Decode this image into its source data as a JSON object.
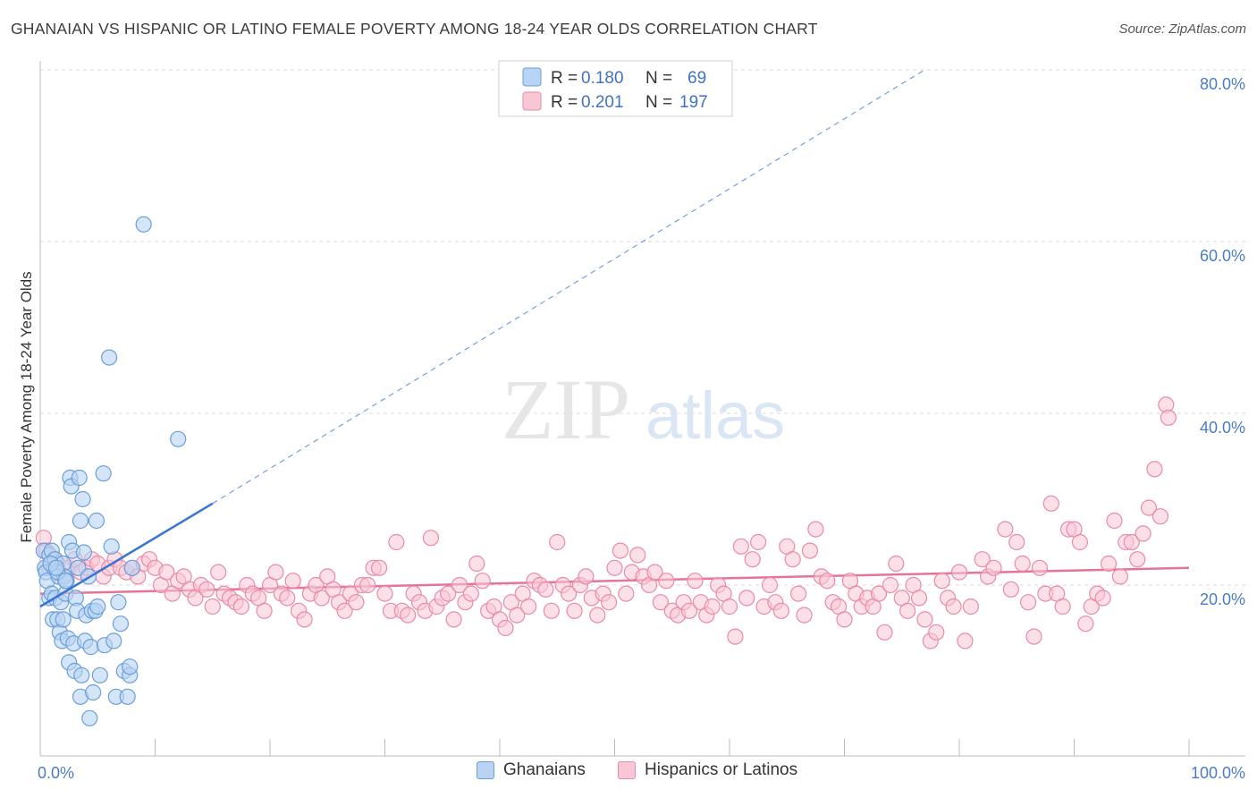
{
  "header": {
    "title": "GHANAIAN VS HISPANIC OR LATINO FEMALE POVERTY AMONG 18-24 YEAR OLDS CORRELATION CHART",
    "source": "Source: ZipAtlas.com"
  },
  "watermark": {
    "zip": "ZIP",
    "atlas": "atlas"
  },
  "colors": {
    "blue_fill": "#b8d3f4",
    "blue_stroke": "#6b9fd8",
    "blue_line": "#3a75d0",
    "pink_fill": "#f9c6d6",
    "pink_stroke": "#e88aa8",
    "pink_line": "#e5739a",
    "tick_text": "#4a7cc9",
    "grid": "#d9d9d9"
  },
  "legend_top": [
    {
      "r_label": "R =",
      "r_value": "0.180",
      "n_label": "N =",
      "n_value": "69"
    },
    {
      "r_label": "R =",
      "r_value": "0.201",
      "n_label": "N =",
      "n_value": "197"
    }
  ],
  "legend_bottom": [
    "Ghanaians",
    "Hispanics or Latinos"
  ],
  "chart_data": {
    "type": "scatter",
    "title": "GHANAIAN VS HISPANIC OR LATINO FEMALE POVERTY AMONG 18-24 YEAR OLDS CORRELATION CHART",
    "ylabel": "Female Poverty Among 18-24 Year Olds",
    "xlabel": "",
    "xlim": [
      0,
      100
    ],
    "ylim": [
      0,
      85
    ],
    "x_tick_labels": [
      "0.0%",
      "100.0%"
    ],
    "y_tick_labels": [
      "20.0%",
      "40.0%",
      "60.0%",
      "80.0%"
    ],
    "y_ticks": [
      20,
      40,
      60,
      80
    ],
    "grid": true,
    "legend_position": "top-center",
    "series": [
      {
        "name": "Ghanaians",
        "R": 0.18,
        "N": 69,
        "trend": {
          "x": [
            0,
            15
          ],
          "y": [
            17.5,
            29.5
          ],
          "extended_to": [
            77,
            80
          ]
        },
        "points": [
          [
            0.3,
            24
          ],
          [
            0.4,
            22
          ],
          [
            0.5,
            21.5
          ],
          [
            0.6,
            20.5
          ],
          [
            0.8,
            23.5
          ],
          [
            0.8,
            18.5
          ],
          [
            1.0,
            19
          ],
          [
            1.0,
            24
          ],
          [
            1.1,
            16
          ],
          [
            1.2,
            22
          ],
          [
            1.3,
            23
          ],
          [
            1.3,
            18.5
          ],
          [
            1.5,
            16
          ],
          [
            1.6,
            21
          ],
          [
            1.7,
            14.5
          ],
          [
            1.8,
            18
          ],
          [
            1.9,
            13.5
          ],
          [
            2.0,
            22.5
          ],
          [
            2.0,
            16
          ],
          [
            2.1,
            21
          ],
          [
            2.2,
            19
          ],
          [
            2.3,
            20.5
          ],
          [
            2.4,
            13.8
          ],
          [
            2.5,
            11
          ],
          [
            2.5,
            25
          ],
          [
            2.6,
            32.5
          ],
          [
            2.7,
            31.5
          ],
          [
            2.8,
            24
          ],
          [
            2.9,
            13.2
          ],
          [
            3.0,
            10
          ],
          [
            3.1,
            18.5
          ],
          [
            3.2,
            17
          ],
          [
            3.3,
            22
          ],
          [
            3.4,
            32.5
          ],
          [
            3.5,
            27.5
          ],
          [
            3.5,
            7
          ],
          [
            3.6,
            9.5
          ],
          [
            3.7,
            30
          ],
          [
            3.8,
            23.8
          ],
          [
            3.9,
            13.5
          ],
          [
            4.0,
            16.5
          ],
          [
            4.2,
            21
          ],
          [
            4.3,
            4.5
          ],
          [
            4.4,
            12.8
          ],
          [
            4.5,
            17
          ],
          [
            4.6,
            7.5
          ],
          [
            4.8,
            17
          ],
          [
            4.9,
            27.5
          ],
          [
            5.0,
            17.5
          ],
          [
            5.2,
            9.5
          ],
          [
            5.5,
            33
          ],
          [
            5.6,
            13
          ],
          [
            6.0,
            46.5
          ],
          [
            6.2,
            24.5
          ],
          [
            6.4,
            13.5
          ],
          [
            6.6,
            7
          ],
          [
            6.8,
            18
          ],
          [
            7.0,
            15.5
          ],
          [
            7.3,
            10
          ],
          [
            7.6,
            7
          ],
          [
            7.8,
            9.5
          ],
          [
            7.8,
            10.5
          ],
          [
            8.0,
            22
          ],
          [
            9.0,
            62
          ],
          [
            12.0,
            37
          ],
          [
            1.5,
            21.5
          ],
          [
            2.2,
            20.5
          ],
          [
            0.9,
            22.5
          ],
          [
            1.4,
            22
          ]
        ]
      },
      {
        "name": "Hispanics or Latinos",
        "R": 0.201,
        "N": 197,
        "trend": {
          "x": [
            0,
            100
          ],
          "y": [
            19,
            22
          ]
        },
        "points": [
          [
            0.3,
            25.5
          ],
          [
            0.5,
            24
          ],
          [
            0.8,
            22
          ],
          [
            1.2,
            23
          ],
          [
            1.5,
            22.5
          ],
          [
            2,
            21
          ],
          [
            2.5,
            22
          ],
          [
            3,
            23
          ],
          [
            3.5,
            21.5
          ],
          [
            4,
            22
          ],
          [
            4.5,
            23
          ],
          [
            5,
            22.5
          ],
          [
            5.5,
            21
          ],
          [
            6,
            22
          ],
          [
            6.5,
            23
          ],
          [
            7,
            22
          ],
          [
            7.5,
            21.5
          ],
          [
            8,
            22
          ],
          [
            8.5,
            21
          ],
          [
            9,
            22.5
          ],
          [
            9.5,
            23
          ],
          [
            10,
            22
          ],
          [
            10.5,
            20
          ],
          [
            11,
            21.5
          ],
          [
            11.5,
            19
          ],
          [
            12,
            20.5
          ],
          [
            12.5,
            21
          ],
          [
            13,
            19.5
          ],
          [
            13.5,
            18.5
          ],
          [
            14,
            20
          ],
          [
            14.5,
            19.5
          ],
          [
            15,
            17.5
          ],
          [
            15.5,
            21.5
          ],
          [
            16,
            19
          ],
          [
            16.5,
            18.5
          ],
          [
            17,
            18
          ],
          [
            17.5,
            17.5
          ],
          [
            18,
            20
          ],
          [
            18.5,
            19
          ],
          [
            19,
            18.5
          ],
          [
            19.5,
            17
          ],
          [
            20,
            20
          ],
          [
            20.5,
            21.5
          ],
          [
            21,
            19
          ],
          [
            21.5,
            18.5
          ],
          [
            22,
            20.5
          ],
          [
            22.5,
            17
          ],
          [
            23,
            16
          ],
          [
            23.5,
            19
          ],
          [
            24,
            20
          ],
          [
            24.5,
            18.5
          ],
          [
            25,
            21
          ],
          [
            25.5,
            19.5
          ],
          [
            26,
            18
          ],
          [
            26.5,
            17
          ],
          [
            27,
            19
          ],
          [
            27.5,
            18
          ],
          [
            28,
            20
          ],
          [
            28.5,
            20
          ],
          [
            29,
            22
          ],
          [
            29.5,
            22
          ],
          [
            30,
            19
          ],
          [
            30.5,
            17
          ],
          [
            31,
            25
          ],
          [
            31.5,
            17
          ],
          [
            32,
            16.5
          ],
          [
            32.5,
            19
          ],
          [
            33,
            18
          ],
          [
            33.5,
            17
          ],
          [
            34,
            25.5
          ],
          [
            34.5,
            17.5
          ],
          [
            35,
            18.5
          ],
          [
            35.5,
            19
          ],
          [
            36,
            16
          ],
          [
            36.5,
            20
          ],
          [
            37,
            18
          ],
          [
            37.5,
            19
          ],
          [
            38,
            22.5
          ],
          [
            38.5,
            20.5
          ],
          [
            39,
            17
          ],
          [
            39.5,
            17.5
          ],
          [
            40,
            16
          ],
          [
            40.5,
            15
          ],
          [
            41,
            18
          ],
          [
            41.5,
            16.5
          ],
          [
            42,
            19
          ],
          [
            42.5,
            17.5
          ],
          [
            43,
            20.5
          ],
          [
            43.5,
            20
          ],
          [
            44,
            19.5
          ],
          [
            44.5,
            17
          ],
          [
            45,
            25
          ],
          [
            45.5,
            20
          ],
          [
            46,
            19
          ],
          [
            46.5,
            17
          ],
          [
            47,
            20
          ],
          [
            47.5,
            21
          ],
          [
            48,
            18.5
          ],
          [
            48.5,
            16.5
          ],
          [
            49,
            19
          ],
          [
            49.5,
            18
          ],
          [
            50,
            22
          ],
          [
            50.5,
            24
          ],
          [
            51,
            19
          ],
          [
            51.5,
            21.5
          ],
          [
            52,
            23.5
          ],
          [
            52.5,
            21
          ],
          [
            53,
            20
          ],
          [
            53.5,
            21.5
          ],
          [
            54,
            18
          ],
          [
            54.5,
            20.5
          ],
          [
            55,
            17
          ],
          [
            55.5,
            16.5
          ],
          [
            56,
            18
          ],
          [
            56.5,
            17
          ],
          [
            57,
            20.5
          ],
          [
            57.5,
            18
          ],
          [
            58,
            16.5
          ],
          [
            58.5,
            17.5
          ],
          [
            59,
            20
          ],
          [
            59.5,
            19
          ],
          [
            60,
            17.5
          ],
          [
            60.5,
            14
          ],
          [
            61,
            24.5
          ],
          [
            61.5,
            18.5
          ],
          [
            62,
            23
          ],
          [
            62.5,
            25
          ],
          [
            63,
            17.5
          ],
          [
            63.5,
            20
          ],
          [
            64,
            18
          ],
          [
            64.5,
            17
          ],
          [
            65,
            24.5
          ],
          [
            65.5,
            23
          ],
          [
            66,
            19
          ],
          [
            66.5,
            16.5
          ],
          [
            67,
            24
          ],
          [
            67.5,
            26.5
          ],
          [
            68,
            21
          ],
          [
            68.5,
            20.5
          ],
          [
            69,
            18
          ],
          [
            69.5,
            17.5
          ],
          [
            70,
            16
          ],
          [
            70.5,
            20.5
          ],
          [
            71,
            19
          ],
          [
            71.5,
            17.5
          ],
          [
            72,
            18.5
          ],
          [
            72.5,
            17.5
          ],
          [
            73,
            19
          ],
          [
            73.5,
            14.5
          ],
          [
            74,
            20
          ],
          [
            74.5,
            22.5
          ],
          [
            75,
            18.5
          ],
          [
            75.5,
            17
          ],
          [
            76,
            20
          ],
          [
            76.5,
            18.5
          ],
          [
            77,
            16
          ],
          [
            77.5,
            13.5
          ],
          [
            78,
            14.5
          ],
          [
            78.5,
            20.5
          ],
          [
            79,
            18.5
          ],
          [
            79.5,
            17.5
          ],
          [
            80,
            21.5
          ],
          [
            80.5,
            13.5
          ],
          [
            81,
            17.5
          ],
          [
            82,
            23
          ],
          [
            82.5,
            21
          ],
          [
            83,
            22
          ],
          [
            84,
            26.5
          ],
          [
            84.5,
            19.5
          ],
          [
            85,
            25
          ],
          [
            85.5,
            22.5
          ],
          [
            86,
            18
          ],
          [
            86.5,
            14
          ],
          [
            87,
            22
          ],
          [
            87.5,
            19
          ],
          [
            88,
            29.5
          ],
          [
            88.5,
            19
          ],
          [
            89,
            17.5
          ],
          [
            89.5,
            26.5
          ],
          [
            90,
            26.5
          ],
          [
            90.5,
            25
          ],
          [
            91,
            15.5
          ],
          [
            91.5,
            17.5
          ],
          [
            92,
            19
          ],
          [
            92.5,
            18.5
          ],
          [
            93,
            22.5
          ],
          [
            93.5,
            27.5
          ],
          [
            94,
            21
          ],
          [
            94.5,
            25
          ],
          [
            95,
            25
          ],
          [
            95.5,
            23
          ],
          [
            96,
            26
          ],
          [
            96.5,
            29
          ],
          [
            97,
            33.5
          ],
          [
            97.5,
            28
          ],
          [
            98,
            41
          ],
          [
            98.2,
            39.5
          ]
        ]
      }
    ]
  }
}
